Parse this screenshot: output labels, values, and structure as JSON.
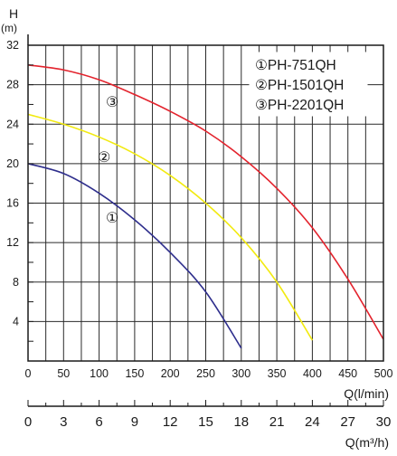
{
  "chart_data": {
    "type": "line",
    "y_axis": {
      "label": "H",
      "unit": "(m)",
      "ticks": [
        4,
        8,
        12,
        16,
        20,
        24,
        28,
        32
      ],
      "range": [
        0,
        32
      ]
    },
    "x_axis": {
      "label": "Q(l/min)",
      "ticks": [
        0,
        50,
        100,
        150,
        200,
        250,
        300,
        350,
        400,
        450,
        500
      ],
      "range": [
        0,
        500
      ]
    },
    "x_axis_secondary": {
      "label": "Q(m³/h)",
      "ticks": [
        0,
        3,
        6,
        9,
        12,
        15,
        18,
        21,
        24,
        27,
        30
      ],
      "range": [
        0,
        30
      ]
    },
    "grid": true,
    "legend_position": "top-right",
    "legend": [
      "①PH-751QH",
      "②PH-1501QH",
      "③PH-2201QH"
    ],
    "series": [
      {
        "name": "PH-751QH",
        "marker": "①",
        "color": "#2e2e8c",
        "x": [
          0,
          50,
          100,
          150,
          200,
          250,
          300
        ],
        "y": [
          20,
          19,
          17,
          14.3,
          11,
          7,
          1.3
        ]
      },
      {
        "name": "PH-1501QH",
        "marker": "②",
        "color": "#f2ea10",
        "x": [
          0,
          50,
          100,
          150,
          200,
          250,
          300,
          350,
          400
        ],
        "y": [
          25,
          24,
          22.7,
          21,
          18.8,
          16,
          12.5,
          8,
          2.1
        ]
      },
      {
        "name": "PH-2201QH",
        "marker": "③",
        "color": "#e3232d",
        "x": [
          0,
          50,
          100,
          150,
          200,
          250,
          300,
          350,
          400,
          450,
          500
        ],
        "y": [
          30,
          29.5,
          28.5,
          27,
          25.3,
          23.3,
          20.7,
          17.5,
          13.5,
          8.3,
          2.2
        ]
      }
    ]
  }
}
